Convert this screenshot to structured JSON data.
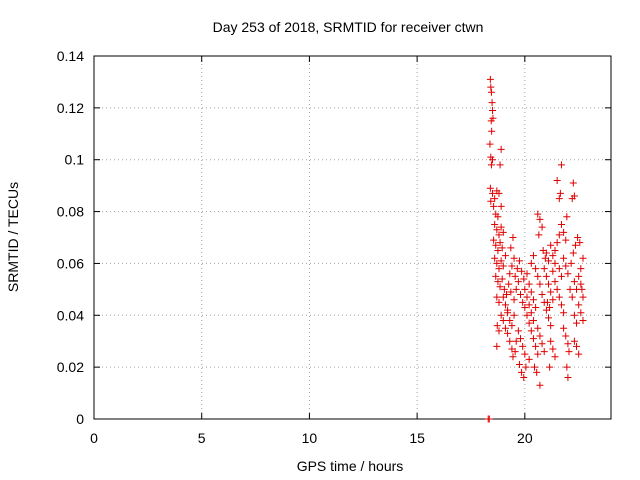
{
  "chart_data": {
    "type": "scatter",
    "title": "Day 253 of 2018, SRMTID for receiver ctwn",
    "xlabel": "GPS time / hours",
    "ylabel": "SRMTID / TECUs",
    "xlim": [
      0,
      24
    ],
    "ylim": [
      0,
      0.14
    ],
    "xticks": [
      0,
      5,
      10,
      15,
      20
    ],
    "xtick_labels": [
      "0",
      "5",
      "10",
      "15",
      "20"
    ],
    "yticks": [
      0,
      0.02,
      0.04,
      0.06,
      0.08,
      0.1,
      0.12,
      0.14
    ],
    "ytick_labels": [
      "0",
      "0.02",
      "0.04",
      "0.06",
      "0.08",
      "0.1",
      "0.12",
      "0.14"
    ],
    "grid": true,
    "marker": "+",
    "color": "#e00000",
    "series": [
      {
        "name": "SRMTID",
        "points": [
          [
            18.3,
            0.0
          ],
          [
            18.35,
            0.0
          ],
          [
            18.4,
            0.131
          ],
          [
            18.42,
            0.128
          ],
          [
            18.45,
            0.126
          ],
          [
            18.48,
            0.122
          ],
          [
            18.5,
            0.119
          ],
          [
            18.44,
            0.115
          ],
          [
            18.52,
            0.116
          ],
          [
            18.46,
            0.111
          ],
          [
            18.38,
            0.106
          ],
          [
            18.42,
            0.101
          ],
          [
            18.5,
            0.1
          ],
          [
            18.45,
            0.098
          ],
          [
            18.9,
            0.104
          ],
          [
            18.85,
            0.098
          ],
          [
            18.4,
            0.089
          ],
          [
            18.5,
            0.087
          ],
          [
            18.6,
            0.085
          ],
          [
            18.7,
            0.088
          ],
          [
            18.8,
            0.087
          ],
          [
            18.42,
            0.084
          ],
          [
            18.55,
            0.082
          ],
          [
            18.65,
            0.079
          ],
          [
            18.75,
            0.078
          ],
          [
            18.9,
            0.082
          ],
          [
            18.6,
            0.075
          ],
          [
            18.7,
            0.073
          ],
          [
            18.8,
            0.071
          ],
          [
            18.9,
            0.074
          ],
          [
            19.0,
            0.072
          ],
          [
            18.55,
            0.069
          ],
          [
            18.65,
            0.067
          ],
          [
            18.75,
            0.065
          ],
          [
            18.85,
            0.068
          ],
          [
            18.95,
            0.066
          ],
          [
            18.6,
            0.062
          ],
          [
            18.7,
            0.06
          ],
          [
            18.8,
            0.058
          ],
          [
            18.9,
            0.061
          ],
          [
            19.0,
            0.059
          ],
          [
            19.1,
            0.063
          ],
          [
            18.65,
            0.055
          ],
          [
            18.75,
            0.053
          ],
          [
            18.85,
            0.051
          ],
          [
            18.95,
            0.054
          ],
          [
            19.05,
            0.05
          ],
          [
            18.7,
            0.047
          ],
          [
            18.8,
            0.045
          ],
          [
            19.15,
            0.048
          ],
          [
            19.25,
            0.052
          ],
          [
            19.35,
            0.049
          ],
          [
            18.72,
            0.036
          ],
          [
            18.8,
            0.034
          ],
          [
            18.7,
            0.028
          ],
          [
            18.9,
            0.04
          ],
          [
            19.1,
            0.044
          ],
          [
            19.2,
            0.041
          ],
          [
            19.3,
            0.038
          ],
          [
            19.4,
            0.036
          ],
          [
            19.5,
            0.04
          ],
          [
            19.2,
            0.033
          ],
          [
            19.3,
            0.03
          ],
          [
            19.4,
            0.027
          ],
          [
            19.45,
            0.024
          ],
          [
            19.55,
            0.026
          ],
          [
            19.6,
            0.03
          ],
          [
            19.7,
            0.034
          ],
          [
            19.8,
            0.031
          ],
          [
            19.9,
            0.028
          ],
          [
            20.0,
            0.025
          ],
          [
            19.75,
            0.021
          ],
          [
            19.85,
            0.018
          ],
          [
            19.95,
            0.016
          ],
          [
            20.05,
            0.02
          ],
          [
            20.2,
            0.023
          ],
          [
            19.5,
            0.046
          ],
          [
            19.6,
            0.05
          ],
          [
            19.7,
            0.053
          ],
          [
            19.8,
            0.048
          ],
          [
            19.9,
            0.045
          ],
          [
            19.3,
            0.056
          ],
          [
            19.4,
            0.059
          ],
          [
            19.5,
            0.062
          ],
          [
            19.35,
            0.066
          ],
          [
            19.45,
            0.07
          ],
          [
            19.55,
            0.055
          ],
          [
            19.65,
            0.058
          ],
          [
            19.75,
            0.061
          ],
          [
            19.85,
            0.057
          ],
          [
            19.95,
            0.054
          ],
          [
            20.0,
            0.05
          ],
          [
            20.1,
            0.047
          ],
          [
            20.2,
            0.044
          ],
          [
            20.3,
            0.041
          ],
          [
            20.4,
            0.038
          ],
          [
            20.0,
            0.043
          ],
          [
            20.1,
            0.04
          ],
          [
            20.2,
            0.037
          ],
          [
            20.3,
            0.034
          ],
          [
            20.4,
            0.031
          ],
          [
            20.1,
            0.056
          ],
          [
            20.2,
            0.052
          ],
          [
            20.3,
            0.049
          ],
          [
            20.4,
            0.046
          ],
          [
            20.5,
            0.043
          ],
          [
            20.5,
            0.028
          ],
          [
            20.6,
            0.025
          ],
          [
            20.7,
            0.013
          ],
          [
            20.45,
            0.02
          ],
          [
            20.55,
            0.018
          ],
          [
            20.3,
            0.06
          ],
          [
            20.4,
            0.063
          ],
          [
            20.5,
            0.058
          ],
          [
            20.6,
            0.055
          ],
          [
            20.7,
            0.052
          ],
          [
            20.6,
            0.079
          ],
          [
            20.7,
            0.077
          ],
          [
            20.8,
            0.074
          ],
          [
            20.65,
            0.071
          ],
          [
            20.8,
            0.048
          ],
          [
            20.9,
            0.045
          ],
          [
            21.0,
            0.042
          ],
          [
            21.1,
            0.039
          ],
          [
            21.2,
            0.036
          ],
          [
            20.9,
            0.058
          ],
          [
            21.0,
            0.055
          ],
          [
            21.1,
            0.052
          ],
          [
            21.2,
            0.049
          ],
          [
            21.3,
            0.046
          ],
          [
            21.0,
            0.064
          ],
          [
            21.1,
            0.061
          ],
          [
            21.2,
            0.067
          ],
          [
            21.3,
            0.063
          ],
          [
            21.4,
            0.06
          ],
          [
            21.2,
            0.03
          ],
          [
            21.3,
            0.027
          ],
          [
            21.4,
            0.024
          ],
          [
            21.15,
            0.02
          ],
          [
            21.4,
            0.053
          ],
          [
            21.5,
            0.05
          ],
          [
            21.6,
            0.047
          ],
          [
            21.7,
            0.044
          ],
          [
            21.8,
            0.041
          ],
          [
            21.5,
            0.092
          ],
          [
            21.7,
            0.098
          ],
          [
            21.6,
            0.085
          ],
          [
            21.65,
            0.087
          ],
          [
            21.6,
            0.058
          ],
          [
            21.7,
            0.055
          ],
          [
            21.8,
            0.062
          ],
          [
            21.9,
            0.059
          ],
          [
            22.0,
            0.056
          ],
          [
            21.7,
            0.075
          ],
          [
            21.8,
            0.072
          ],
          [
            21.9,
            0.069
          ],
          [
            21.95,
            0.078
          ],
          [
            21.8,
            0.035
          ],
          [
            21.9,
            0.032
          ],
          [
            22.0,
            0.029
          ],
          [
            22.05,
            0.026
          ],
          [
            21.95,
            0.02
          ],
          [
            22.0,
            0.016
          ],
          [
            22.1,
            0.05
          ],
          [
            22.2,
            0.047
          ],
          [
            22.3,
            0.053
          ],
          [
            22.4,
            0.05
          ],
          [
            22.5,
            0.055
          ],
          [
            22.15,
            0.06
          ],
          [
            22.25,
            0.064
          ],
          [
            22.35,
            0.067
          ],
          [
            22.45,
            0.07
          ],
          [
            22.55,
            0.068
          ],
          [
            22.2,
            0.085
          ],
          [
            22.25,
            0.091
          ],
          [
            22.3,
            0.086
          ],
          [
            22.3,
            0.04
          ],
          [
            22.4,
            0.037
          ],
          [
            22.5,
            0.044
          ],
          [
            22.6,
            0.041
          ],
          [
            22.7,
            0.038
          ],
          [
            22.4,
            0.028
          ],
          [
            22.5,
            0.025
          ],
          [
            22.3,
            0.03
          ],
          [
            22.6,
            0.058
          ],
          [
            22.7,
            0.062
          ],
          [
            22.65,
            0.05
          ],
          [
            22.7,
            0.047
          ],
          [
            22.6,
            0.052
          ],
          [
            19.0,
            0.038
          ],
          [
            19.1,
            0.035
          ],
          [
            19.2,
            0.042
          ],
          [
            19.0,
            0.047
          ],
          [
            20.6,
            0.035
          ],
          [
            20.7,
            0.032
          ],
          [
            20.8,
            0.029
          ],
          [
            20.9,
            0.026
          ],
          [
            21.3,
            0.057
          ],
          [
            21.4,
            0.065
          ],
          [
            21.5,
            0.068
          ],
          [
            21.6,
            0.071
          ],
          [
            20.85,
            0.065
          ],
          [
            20.95,
            0.062
          ],
          [
            21.05,
            0.045
          ],
          [
            21.15,
            0.043
          ]
        ]
      }
    ]
  }
}
